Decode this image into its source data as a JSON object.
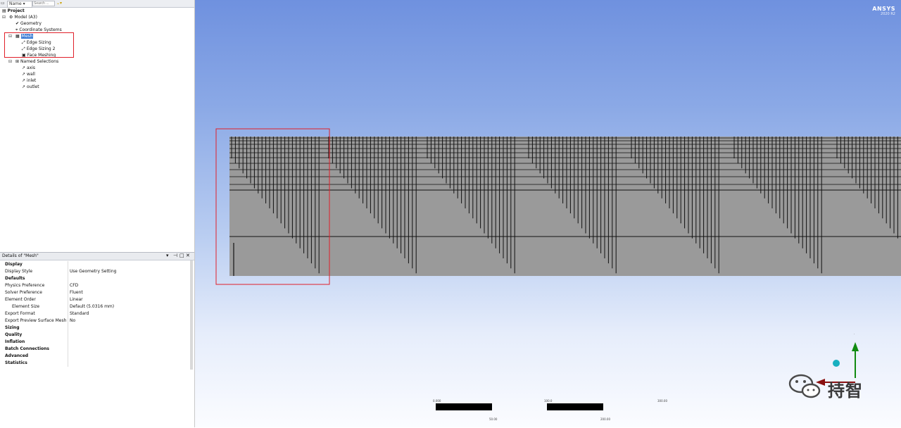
{
  "toolbar": {
    "name_label": "Name",
    "search_placeholder": "Search ...",
    "dropdown_icon": "chevron-down-icon"
  },
  "tree": {
    "items": [
      {
        "label": "Project"
      },
      {
        "label": "Model (A3)"
      },
      {
        "label": "Geometry"
      },
      {
        "label": "Coordinate Systems"
      },
      {
        "label": "Mesh"
      },
      {
        "label": "Edge Sizing"
      },
      {
        "label": "Edge Sizing 2"
      },
      {
        "label": "Face Meshing"
      },
      {
        "label": "Named Selections"
      },
      {
        "label": "axis"
      },
      {
        "label": "wall"
      },
      {
        "label": "inlet"
      },
      {
        "label": "outlet"
      }
    ]
  },
  "details": {
    "title": "Details of \"Mesh\"",
    "pin_icon": "pin-icon",
    "close_icon": "close-icon",
    "rows": [
      {
        "label": "Display",
        "value": "",
        "group": true
      },
      {
        "label": "Display Style",
        "value": "Use Geometry Setting",
        "group": false
      },
      {
        "label": "Defaults",
        "value": "",
        "group": true
      },
      {
        "label": "Physics Preference",
        "value": "CFD",
        "group": false
      },
      {
        "label": "Solver Preference",
        "value": "Fluent",
        "group": false
      },
      {
        "label": "Element Order",
        "value": "Linear",
        "group": false
      },
      {
        "label": "Element Size",
        "value": "Default (5.0316 mm)",
        "group": false
      },
      {
        "label": "Export Format",
        "value": "Standard",
        "group": false
      },
      {
        "label": "Export Preview Surface Mesh",
        "value": "No",
        "group": false
      },
      {
        "label": "Sizing",
        "value": "",
        "group": true
      },
      {
        "label": "Quality",
        "value": "",
        "group": true
      },
      {
        "label": "Inflation",
        "value": "",
        "group": true
      },
      {
        "label": "Batch Connections",
        "value": "",
        "group": true
      },
      {
        "label": "Advanced",
        "value": "",
        "group": true
      },
      {
        "label": "Statistics",
        "value": "",
        "group": true
      }
    ]
  },
  "viewport": {
    "logo_main": "ANSYS",
    "logo_sub": "2020 R2",
    "watermark_text": "持智",
    "mesh_color": "#9a9a9a",
    "accent_red": "#e0202a"
  }
}
